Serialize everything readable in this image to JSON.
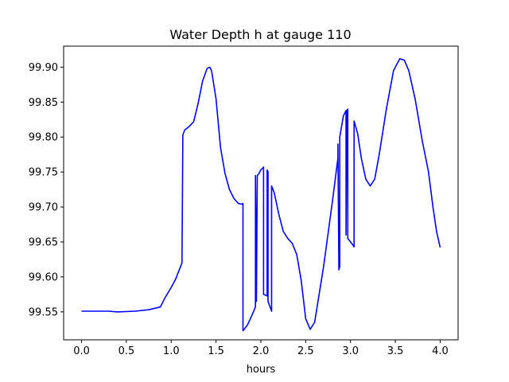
{
  "chart_data": {
    "type": "line",
    "title": "Water Depth h at gauge 110",
    "xlabel": "hours",
    "ylabel": "",
    "xlim": [
      -0.2,
      4.2
    ],
    "ylim": [
      99.51,
      99.93
    ],
    "xticks": [
      0.0,
      0.5,
      1.0,
      1.5,
      2.0,
      2.5,
      3.0,
      3.5,
      4.0
    ],
    "xtick_labels": [
      "0.0",
      "0.5",
      "1.0",
      "1.5",
      "2.0",
      "2.5",
      "3.0",
      "3.5",
      "4.0"
    ],
    "yticks": [
      99.55,
      99.6,
      99.65,
      99.7,
      99.75,
      99.8,
      99.85,
      99.9
    ],
    "ytick_labels": [
      "99.55",
      "99.60",
      "99.65",
      "99.70",
      "99.75",
      "99.80",
      "99.85",
      "99.90"
    ],
    "grid": false,
    "series": [
      {
        "color": "#0000ff",
        "points": [
          [
            0.0,
            99.551
          ],
          [
            0.3,
            99.551
          ],
          [
            0.4,
            99.55
          ],
          [
            0.6,
            99.551
          ],
          [
            0.75,
            99.553
          ],
          [
            0.88,
            99.557
          ],
          [
            0.93,
            99.57
          ],
          [
            1.0,
            99.585
          ],
          [
            1.05,
            99.597
          ],
          [
            1.12,
            99.62
          ],
          [
            1.13,
            99.803
          ],
          [
            1.15,
            99.81
          ],
          [
            1.2,
            99.815
          ],
          [
            1.25,
            99.822
          ],
          [
            1.3,
            99.848
          ],
          [
            1.35,
            99.88
          ],
          [
            1.4,
            99.898
          ],
          [
            1.43,
            99.9
          ],
          [
            1.45,
            99.895
          ],
          [
            1.5,
            99.855
          ],
          [
            1.55,
            99.785
          ],
          [
            1.6,
            99.748
          ],
          [
            1.65,
            99.725
          ],
          [
            1.7,
            99.712
          ],
          [
            1.75,
            99.705
          ],
          [
            1.79,
            99.704
          ],
          [
            1.8,
            99.705
          ],
          [
            1.8,
            99.523
          ],
          [
            1.85,
            99.531
          ],
          [
            1.9,
            99.545
          ],
          [
            1.94,
            99.557
          ],
          [
            1.94,
            99.745
          ],
          [
            1.95,
            99.565
          ],
          [
            1.96,
            99.745
          ],
          [
            1.98,
            99.748
          ],
          [
            2.0,
            99.753
          ],
          [
            2.03,
            99.757
          ],
          [
            2.03,
            99.575
          ],
          [
            2.07,
            99.573
          ],
          [
            2.07,
            99.753
          ],
          [
            2.08,
            99.75
          ],
          [
            2.08,
            99.565
          ],
          [
            2.12,
            99.551
          ],
          [
            2.12,
            99.73
          ],
          [
            2.15,
            99.72
          ],
          [
            2.2,
            99.69
          ],
          [
            2.25,
            99.665
          ],
          [
            2.3,
            99.655
          ],
          [
            2.35,
            99.648
          ],
          [
            2.4,
            99.632
          ],
          [
            2.45,
            99.595
          ],
          [
            2.5,
            99.54
          ],
          [
            2.55,
            99.525
          ],
          [
            2.6,
            99.535
          ],
          [
            2.7,
            99.615
          ],
          [
            2.8,
            99.71
          ],
          [
            2.86,
            99.77
          ],
          [
            2.86,
            99.79
          ],
          [
            2.87,
            99.61
          ],
          [
            2.88,
            99.615
          ],
          [
            2.88,
            99.8
          ],
          [
            2.92,
            99.83
          ],
          [
            2.95,
            99.838
          ],
          [
            2.95,
            99.66
          ],
          [
            2.96,
            99.838
          ],
          [
            2.97,
            99.84
          ],
          [
            2.97,
            99.655
          ],
          [
            3.03,
            99.645
          ],
          [
            3.04,
            99.643
          ],
          [
            3.04,
            99.823
          ],
          [
            3.08,
            99.805
          ],
          [
            3.12,
            99.77
          ],
          [
            3.17,
            99.74
          ],
          [
            3.22,
            99.73
          ],
          [
            3.27,
            99.74
          ],
          [
            3.32,
            99.775
          ],
          [
            3.4,
            99.84
          ],
          [
            3.48,
            99.895
          ],
          [
            3.55,
            99.912
          ],
          [
            3.6,
            99.91
          ],
          [
            3.65,
            99.895
          ],
          [
            3.72,
            99.855
          ],
          [
            3.8,
            99.795
          ],
          [
            3.87,
            99.75
          ],
          [
            3.92,
            99.7
          ],
          [
            3.96,
            99.665
          ],
          [
            4.0,
            99.642
          ]
        ]
      }
    ]
  }
}
